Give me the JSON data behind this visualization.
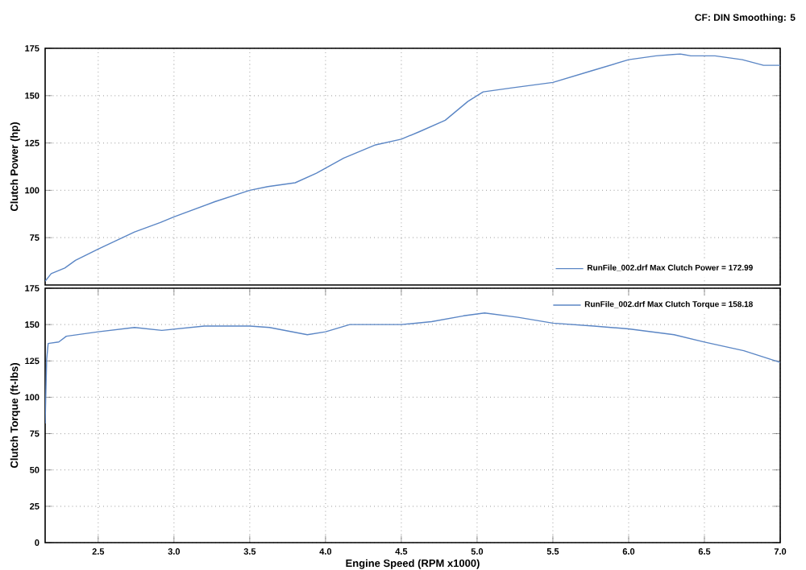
{
  "chart_data": [
    {
      "type": "line",
      "ylabel": "Clutch Power (hp)",
      "annotations": [
        "CF: DIN  Smoothing: 5"
      ],
      "xlim": [
        2.15,
        7.0
      ],
      "ylim": [
        50,
        175
      ],
      "xticks": [
        {
          "value": 2.5,
          "label": null
        },
        {
          "value": 3,
          "label": null
        },
        {
          "value": 3.5,
          "label": null
        },
        {
          "value": 4,
          "label": null
        },
        {
          "value": 4.5,
          "label": null
        },
        {
          "value": 5,
          "label": null
        },
        {
          "value": 5.5,
          "label": null
        },
        {
          "value": 6,
          "label": null
        },
        {
          "value": 6.5,
          "label": null
        },
        {
          "value": 7,
          "label": null
        }
      ],
      "yticks": [
        75,
        100,
        125,
        150,
        175
      ],
      "tick_labels": "y",
      "grid": true,
      "legend": "bottom right",
      "marker": "none",
      "line_style": "solid",
      "series": [
        {
          "name": "RunFile_002.drf Max Clutch Power = 172.99",
          "color": "#5b86c5",
          "x": [
            2.15,
            2.19,
            2.28,
            2.35,
            2.5,
            2.74,
            2.91,
            3.0,
            3.27,
            3.5,
            3.62,
            3.8,
            3.94,
            4.12,
            4.33,
            4.5,
            4.62,
            4.79,
            4.94,
            5.04,
            5.22,
            5.5,
            5.75,
            6.0,
            6.18,
            6.34,
            6.41,
            6.57,
            6.75,
            6.89,
            7.0
          ],
          "values": [
            52,
            56,
            59,
            63,
            69,
            78,
            83,
            86,
            94,
            100,
            102,
            104,
            109,
            117,
            124,
            127,
            131,
            137,
            147,
            152,
            154,
            157,
            163,
            169,
            171,
            172,
            171,
            171,
            169,
            166,
            166
          ]
        }
      ]
    },
    {
      "type": "line",
      "xlabel": "Engine Speed (RPM x1000)",
      "ylabel": "Clutch Torque (ft-lbs)",
      "xlim": [
        2.15,
        7.0
      ],
      "ylim": [
        0,
        175
      ],
      "xticks": [
        2.5,
        {
          "value": 3,
          "label": "3.0"
        },
        3.5,
        {
          "value": 4,
          "label": "4.0"
        },
        4.5,
        {
          "value": 5,
          "label": "5.0"
        },
        5.5,
        {
          "value": 6,
          "label": "6.0"
        },
        6.5,
        {
          "value": 7,
          "label": "7.0"
        }
      ],
      "yticks": [
        0,
        25,
        50,
        75,
        100,
        125,
        150,
        175
      ],
      "grid": true,
      "legend": "top right",
      "marker": "none",
      "line_style": "solid",
      "series": [
        {
          "name": "RunFile_002.drf Max Clutch Torque = 158.18",
          "color": "#5b86c5",
          "x": [
            2.15,
            2.16,
            2.17,
            2.24,
            2.29,
            2.5,
            2.74,
            2.92,
            3.2,
            3.5,
            3.63,
            3.88,
            4.0,
            4.16,
            4.5,
            4.7,
            4.91,
            5.05,
            5.27,
            5.5,
            5.77,
            6.0,
            6.3,
            6.5,
            6.76,
            7.0
          ],
          "values": [
            82,
            126,
            137,
            138,
            142,
            145,
            148,
            146,
            149,
            149,
            148,
            143,
            145,
            150,
            150,
            152,
            156,
            158,
            155,
            151,
            149,
            147,
            143,
            138,
            132,
            124
          ]
        }
      ]
    }
  ]
}
